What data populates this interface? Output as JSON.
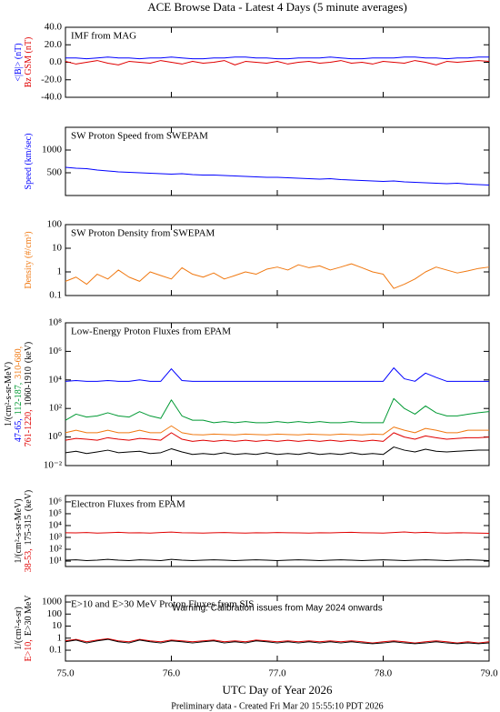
{
  "chart_data": {
    "title": "ACE Browse Data - Latest 4 Days (5 minute averages)",
    "x_label": "UTC Day of Year 2026",
    "footer": "Preliminary data - Created Fri Mar 20 15:55:10 PDT 2026",
    "xlim": [
      75,
      79
    ],
    "xticks": [
      {
        "value": 75,
        "label": "75.0"
      },
      {
        "value": 76,
        "label": "76.0"
      },
      {
        "value": 77,
        "label": "77.0"
      },
      {
        "value": 78,
        "label": "78.0"
      },
      {
        "value": 79,
        "label": "79.0"
      }
    ],
    "x": [
      75,
      75.1,
      75.2,
      75.3,
      75.4,
      75.5,
      75.6,
      75.7,
      75.8,
      75.9,
      76,
      76.1,
      76.2,
      76.3,
      76.4,
      76.5,
      76.6,
      76.7,
      76.8,
      76.9,
      77,
      77.1,
      77.2,
      77.3,
      77.4,
      77.5,
      77.6,
      77.7,
      77.8,
      77.9,
      78,
      78.1,
      78.2,
      78.3,
      78.4,
      78.5,
      78.6,
      78.7,
      78.8,
      78.9,
      79
    ],
    "panels": [
      {
        "type": "line",
        "title": "IMF from MAG",
        "log": false,
        "ylim": [
          -40,
          40
        ],
        "yticks": [
          {
            "value": -40,
            "label": "-40.0"
          },
          {
            "value": -20,
            "label": "-20.0"
          },
          {
            "value": 0,
            "label": "0.0"
          },
          {
            "value": 20,
            "label": "20.0"
          },
          {
            "value": 40,
            "label": "40.0"
          }
        ],
        "series": [
          {
            "name": "<|B|> (nT)",
            "color": "#0000ff",
            "values": [
              5,
              5,
              4,
              5,
              6,
              5,
              5,
              4,
              5,
              5,
              6,
              5,
              4,
              4,
              5,
              5,
              6,
              6,
              5,
              5,
              4,
              4,
              5,
              5,
              5,
              6,
              5,
              4,
              4,
              5,
              5,
              5,
              6,
              6,
              5,
              5,
              4,
              5,
              5,
              6,
              6
            ]
          },
          {
            "name": "Bz GSM (nT)",
            "color": "#e00000",
            "values": [
              1,
              -2,
              0,
              2,
              -1,
              -3,
              1,
              0,
              -1,
              2,
              0,
              -2,
              1,
              -1,
              0,
              2,
              -3,
              1,
              0,
              -1,
              1,
              -2,
              0,
              1,
              -1,
              0,
              2,
              -1,
              0,
              -2,
              1,
              0,
              -1,
              2,
              0,
              -3,
              1,
              0,
              1,
              2,
              1
            ]
          }
        ]
      },
      {
        "type": "line",
        "title": "SW Proton Speed from SWEPAM",
        "log": false,
        "ylim": [
          0,
          1500
        ],
        "yticks": [
          500,
          1000
        ],
        "series": [
          {
            "name": "Speed (km/sec)",
            "color": "#0000ff",
            "values": [
              620,
              600,
              590,
              560,
              540,
              520,
              510,
              500,
              490,
              480,
              470,
              480,
              460,
              450,
              450,
              440,
              430,
              420,
              410,
              400,
              400,
              390,
              380,
              370,
              360,
              370,
              350,
              340,
              330,
              320,
              310,
              320,
              300,
              290,
              280,
              270,
              260,
              270,
              250,
              240,
              230
            ]
          }
        ]
      },
      {
        "type": "line",
        "title": "SW Proton Density from SWEPAM",
        "log": true,
        "ylim": [
          0.1,
          100
        ],
        "yticks": [
          0.1,
          1,
          10,
          100
        ],
        "series": [
          {
            "name": "Density (#/cm³)",
            "color": "#f07810",
            "values": [
              0.4,
              0.6,
              0.3,
              0.8,
              0.5,
              1.2,
              0.6,
              0.4,
              1.0,
              0.7,
              0.5,
              1.5,
              0.8,
              0.6,
              0.9,
              0.5,
              0.7,
              1.0,
              0.8,
              1.3,
              1.6,
              1.2,
              2.0,
              1.5,
              1.8,
              1.2,
              1.6,
              2.2,
              1.5,
              1.0,
              0.8,
              0.2,
              0.3,
              0.5,
              1.0,
              1.6,
              1.2,
              0.9,
              1.1,
              1.4,
              1.6
            ]
          }
        ]
      },
      {
        "type": "line",
        "title": "Low-Energy Proton Fluxes from EPAM",
        "log": true,
        "ylim": [
          0.01,
          100000000
        ],
        "yticks": [
          {
            "value": 0.01,
            "label": "10⁻²"
          },
          {
            "value": 1,
            "label": "10⁰"
          },
          {
            "value": 100,
            "label": "10²"
          },
          {
            "value": 10000,
            "label": "10⁴"
          },
          {
            "value": 1000000,
            "label": "10⁶"
          },
          {
            "value": 100000000,
            "label": "10⁸"
          }
        ],
        "ylabel": "1/(cm²-s-sr-MeV)",
        "ylabel_unit": "(keV)",
        "series": [
          {
            "name": "47-65,",
            "color": "#0000ff",
            "values": [
              8000,
              9000,
              8000,
              8000,
              9000,
              8000,
              8000,
              10000,
              8000,
              8000,
              60000,
              9000,
              8000,
              8000,
              8000,
              8000,
              8000,
              8000,
              8000,
              8000,
              8000,
              8000,
              8000,
              8000,
              8000,
              8000,
              8000,
              8000,
              8000,
              8000,
              8000,
              70000,
              12000,
              8000,
              30000,
              15000,
              8000,
              8000,
              8000,
              8000,
              8000
            ]
          },
          {
            "name": "112-187,",
            "color": "#009933",
            "values": [
              15,
              40,
              25,
              30,
              50,
              30,
              25,
              60,
              30,
              20,
              400,
              30,
              15,
              15,
              10,
              12,
              10,
              12,
              10,
              10,
              12,
              10,
              12,
              10,
              12,
              10,
              10,
              12,
              10,
              10,
              10,
              500,
              100,
              40,
              150,
              50,
              30,
              30,
              40,
              50,
              60
            ]
          },
          {
            "name": "310-680,",
            "color": "#f07810",
            "values": [
              2,
              3,
              2,
              2,
              3,
              2,
              2,
              3,
              2,
              2,
              6,
              2,
              1.5,
              1.4,
              1.6,
              1.5,
              1.4,
              1.6,
              1.5,
              1.4,
              1.6,
              1.5,
              1.4,
              1.6,
              1.5,
              1.4,
              1.6,
              1.5,
              1.4,
              1.6,
              1.5,
              5,
              3,
              2,
              4,
              3,
              2,
              2,
              3,
              3,
              3
            ]
          },
          {
            "name": "761-1220,",
            "color": "#e00000",
            "values": [
              0.6,
              0.8,
              0.7,
              0.6,
              0.9,
              0.7,
              0.6,
              0.8,
              0.7,
              0.6,
              2,
              0.7,
              0.5,
              0.6,
              0.5,
              0.6,
              0.5,
              0.6,
              0.5,
              0.6,
              0.5,
              0.6,
              0.5,
              0.6,
              0.5,
              0.6,
              0.5,
              0.6,
              0.5,
              0.6,
              0.5,
              2,
              1,
              0.7,
              1.2,
              0.9,
              0.7,
              0.8,
              0.9,
              0.9,
              1.0
            ]
          },
          {
            "name": "1060-1910",
            "color": "#000000",
            "values": [
              0.08,
              0.1,
              0.07,
              0.09,
              0.12,
              0.08,
              0.09,
              0.1,
              0.07,
              0.08,
              0.15,
              0.09,
              0.06,
              0.07,
              0.06,
              0.08,
              0.06,
              0.07,
              0.06,
              0.08,
              0.06,
              0.07,
              0.06,
              0.08,
              0.06,
              0.07,
              0.06,
              0.08,
              0.06,
              0.07,
              0.06,
              0.2,
              0.12,
              0.09,
              0.14,
              0.1,
              0.09,
              0.1,
              0.11,
              0.12,
              0.12
            ]
          }
        ]
      },
      {
        "type": "line",
        "title": "Electron Fluxes from EPAM",
        "log": true,
        "ylim": [
          3.5,
          3400000
        ],
        "yticks": [
          {
            "value": 10,
            "label": "10¹"
          },
          {
            "value": 100,
            "label": "10²"
          },
          {
            "value": 1000,
            "label": "10³"
          },
          {
            "value": 10000,
            "label": "10⁴"
          },
          {
            "value": 100000,
            "label": "10⁵"
          },
          {
            "value": 1000000,
            "label": "10⁶"
          }
        ],
        "ylabel": "1/(cm²-s-sr-MeV)",
        "ylabel_unit": "(keV)",
        "series": [
          {
            "name": "38-53,",
            "color": "#e00000",
            "values": [
              2500,
              2400,
              2600,
              2300,
              2500,
              2700,
              2400,
              2500,
              2300,
              2600,
              2800,
              2500,
              2400,
              2300,
              2500,
              2600,
              2400,
              2300,
              2500,
              2400,
              2600,
              2500,
              2400,
              2300,
              2500,
              2400,
              2600,
              2700,
              2500,
              2400,
              2300,
              2600,
              2900,
              2500,
              2700,
              2400,
              2300,
              2500,
              2400,
              2300,
              2200
            ]
          },
          {
            "name": "175-315",
            "color": "#000000",
            "values": [
              12,
              13,
              11,
              12,
              14,
              12,
              11,
              13,
              12,
              11,
              14,
              12,
              11,
              12,
              13,
              12,
              11,
              12,
              13,
              12,
              11,
              12,
              13,
              12,
              11,
              12,
              13,
              12,
              11,
              12,
              13,
              12,
              11,
              12,
              13,
              12,
              11,
              12,
              13,
              12,
              11
            ]
          }
        ]
      },
      {
        "type": "line",
        "title": "E>10 and E>30 MeV Proton Fluxes from SIS",
        "log": true,
        "ylim": [
          0.0125,
          3400
        ],
        "yticks": [
          0.1,
          1,
          10,
          100,
          1000
        ],
        "ylabel": "1/(cm²-s-sr)",
        "annotation": "Warning: Calibration issues from May 2024 onwards",
        "series": [
          {
            "name": "E>10,",
            "color": "#e00000",
            "values": [
              0.6,
              0.8,
              0.5,
              0.7,
              0.9,
              0.6,
              0.5,
              0.8,
              0.6,
              0.5,
              0.7,
              0.6,
              0.5,
              0.6,
              0.7,
              0.5,
              0.6,
              0.5,
              0.7,
              0.6,
              0.5,
              0.6,
              0.5,
              0.6,
              0.5,
              0.6,
              0.5,
              0.6,
              0.5,
              0.4,
              0.5,
              0.6,
              0.5,
              0.4,
              0.5,
              0.6,
              0.5,
              0.4,
              0.5,
              0.4,
              0.5
            ]
          },
          {
            "name": "E>30 MeV",
            "color": "#000000",
            "values": [
              0.5,
              0.7,
              0.4,
              0.6,
              0.8,
              0.5,
              0.4,
              0.7,
              0.5,
              0.4,
              0.6,
              0.5,
              0.4,
              0.5,
              0.6,
              0.4,
              0.5,
              0.4,
              0.6,
              0.5,
              0.4,
              0.5,
              0.4,
              0.5,
              0.4,
              0.5,
              0.4,
              0.5,
              0.4,
              0.35,
              0.4,
              0.5,
              0.4,
              0.35,
              0.4,
              0.5,
              0.4,
              0.35,
              0.4,
              0.35,
              0.4
            ]
          }
        ]
      }
    ]
  }
}
